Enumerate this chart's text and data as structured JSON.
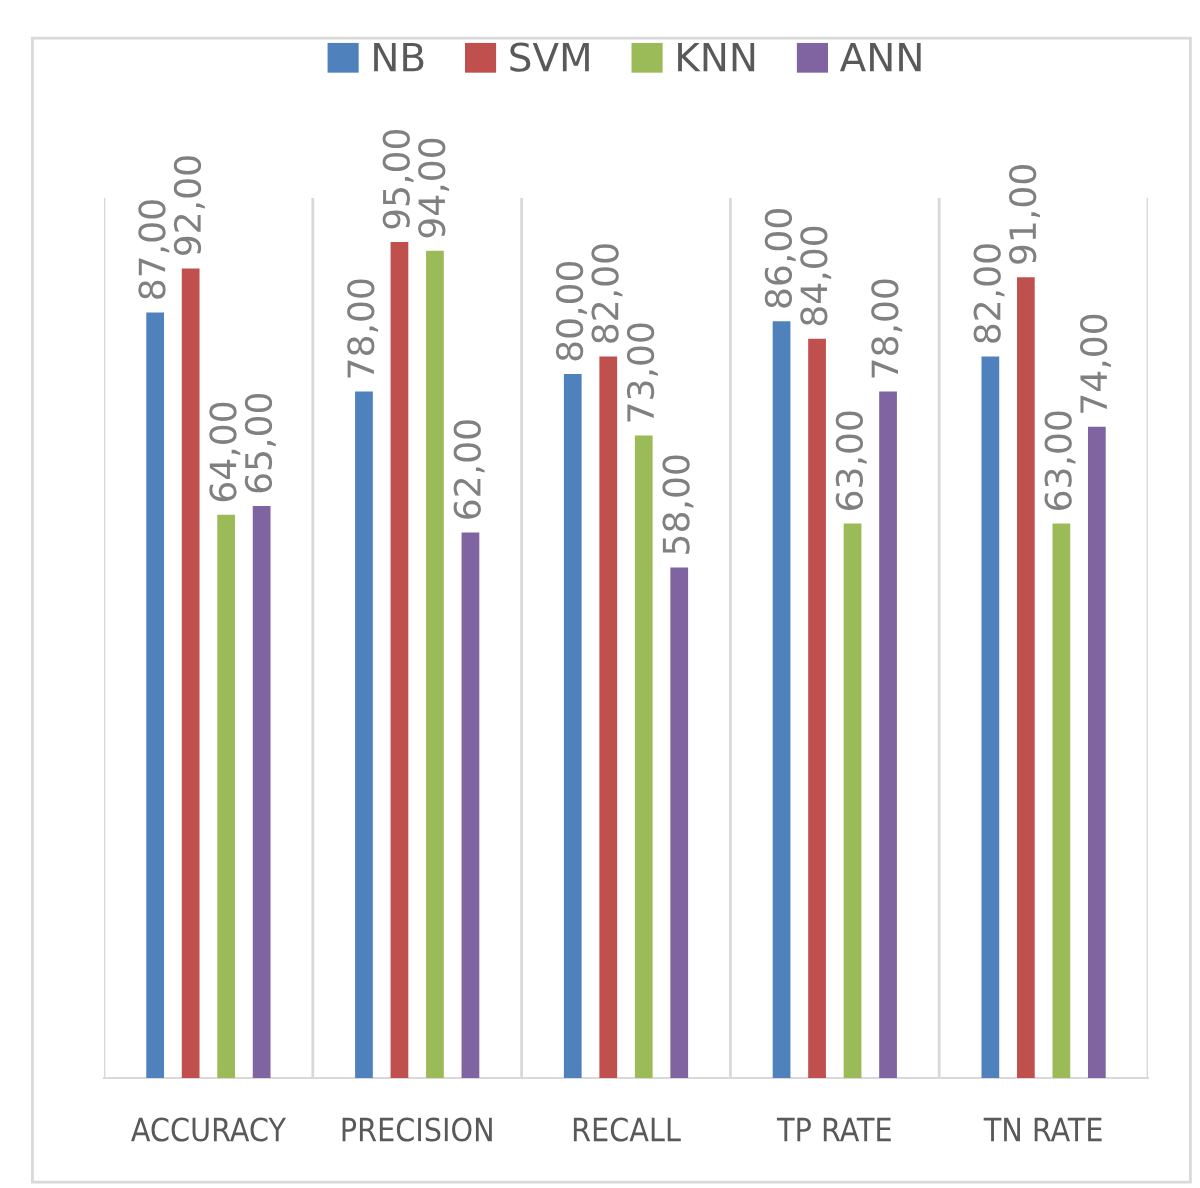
{
  "chart_data": {
    "type": "bar",
    "categories": [
      "ACCURACY",
      "PRECISION",
      "RECALL",
      "TP RATE",
      "TN RATE"
    ],
    "series": [
      {
        "name": "NB",
        "color": "#4f81bd",
        "values": [
          87,
          78,
          80,
          86,
          82
        ],
        "value_labels": [
          "87,00",
          "78,00",
          "80,00",
          "86,00",
          "82,00"
        ]
      },
      {
        "name": "SVM",
        "color": "#c0504d",
        "values": [
          92,
          95,
          82,
          84,
          91
        ],
        "value_labels": [
          "92,00",
          "95,00",
          "82,00",
          "84,00",
          "91,00"
        ]
      },
      {
        "name": "KNN",
        "color": "#9bbb59",
        "values": [
          64,
          94,
          73,
          63,
          63
        ],
        "value_labels": [
          "64,00",
          "94,00",
          "73,00",
          "63,00",
          "63,00"
        ]
      },
      {
        "name": "ANN",
        "color": "#8064a2",
        "values": [
          65,
          62,
          58,
          78,
          74
        ],
        "value_labels": [
          "65,00",
          "62,00",
          "58,00",
          "78,00",
          "74,00"
        ]
      }
    ],
    "ylim": [
      0,
      100
    ],
    "tick_labels": "x",
    "grid": "x",
    "legend": "top"
  }
}
